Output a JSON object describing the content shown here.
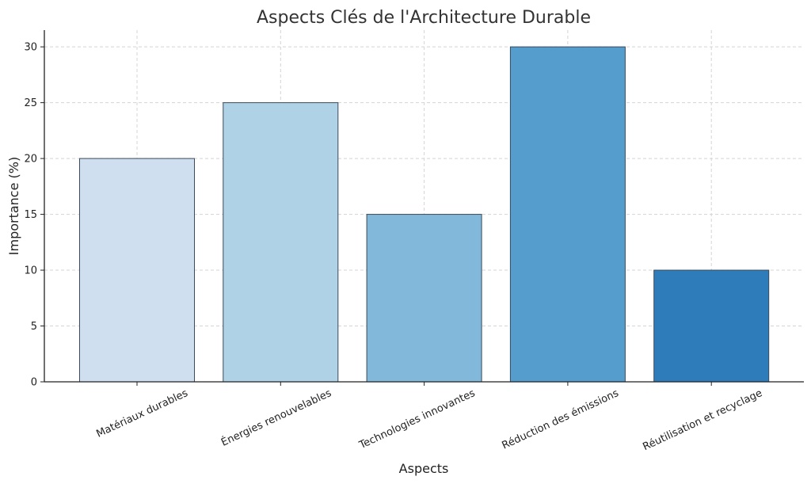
{
  "chart_data": {
    "type": "bar",
    "title": "Aspects Clés de l'Architecture Durable",
    "xlabel": "Aspects",
    "ylabel": "Importance (%)",
    "categories": [
      "Matériaux durables",
      "Énergies renouvelables",
      "Technologies innovantes",
      "Réduction des émissions",
      "Réutilisation et recyclage"
    ],
    "values": [
      20,
      25,
      15,
      30,
      10
    ],
    "colors": [
      "#cfdff0",
      "#b0d2e7",
      "#82b8d9",
      "#559dcd",
      "#2e7dba"
    ],
    "bar_edge_color": "#3a4a5a",
    "ylim": [
      0,
      31.5
    ],
    "yticks": [
      0,
      5,
      10,
      15,
      20,
      25,
      30
    ],
    "grid": true,
    "x_tick_rotation": "rotated"
  }
}
